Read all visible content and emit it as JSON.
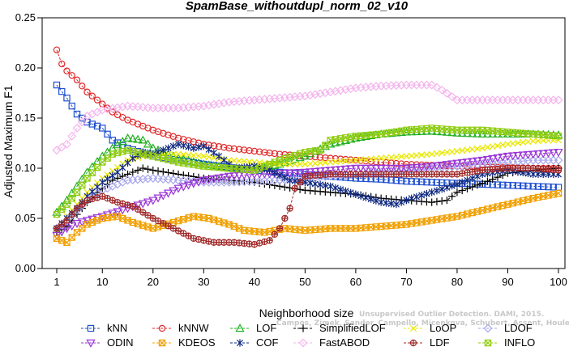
{
  "chart_data": {
    "type": "line",
    "title": "SpamBase_withoutdupl_norm_02_v10",
    "xlabel": "Neighborhood size",
    "ylabel": "Adjusted Maximum F1",
    "xlim": [
      0,
      100
    ],
    "ylim": [
      0,
      0.25
    ],
    "xticks": [
      "1",
      "10",
      "20",
      "30",
      "40",
      "50",
      "60",
      "70",
      "80",
      "90",
      "100"
    ],
    "yticks": [
      "0.00",
      "0.05",
      "0.10",
      "0.15",
      "0.20",
      "0.25"
    ],
    "watermark": {
      "line1": "Unsupervised Outlier Detection. DAMI, 2015.",
      "line2": "Campos, Zimek, Sander, Campello, Micenkova, Schubert, Assent, Houle"
    },
    "legend_position": "bottom",
    "series": [
      {
        "name": "kNN",
        "color": "#1f4fd0",
        "marker": "square",
        "points": [
          [
            1,
            0.183
          ],
          [
            3,
            0.17
          ],
          [
            5,
            0.154
          ],
          [
            7,
            0.146
          ],
          [
            10,
            0.14
          ],
          [
            12,
            0.128
          ],
          [
            15,
            0.12
          ],
          [
            20,
            0.112
          ],
          [
            25,
            0.108
          ],
          [
            30,
            0.104
          ],
          [
            35,
            0.101
          ],
          [
            40,
            0.098
          ],
          [
            45,
            0.096
          ],
          [
            50,
            0.094
          ],
          [
            55,
            0.092
          ],
          [
            60,
            0.09
          ],
          [
            65,
            0.089
          ],
          [
            70,
            0.087
          ],
          [
            75,
            0.086
          ],
          [
            80,
            0.085
          ],
          [
            85,
            0.084
          ],
          [
            90,
            0.083
          ],
          [
            95,
            0.082
          ],
          [
            100,
            0.081
          ]
        ]
      },
      {
        "name": "kNNW",
        "color": "#e02a2a",
        "marker": "circle",
        "points": [
          [
            1,
            0.218
          ],
          [
            2,
            0.204
          ],
          [
            3,
            0.197
          ],
          [
            5,
            0.188
          ],
          [
            7,
            0.176
          ],
          [
            10,
            0.164
          ],
          [
            12,
            0.156
          ],
          [
            15,
            0.148
          ],
          [
            20,
            0.138
          ],
          [
            25,
            0.13
          ],
          [
            30,
            0.124
          ],
          [
            35,
            0.12
          ],
          [
            40,
            0.117
          ],
          [
            45,
            0.114
          ],
          [
            50,
            0.112
          ],
          [
            55,
            0.11
          ],
          [
            60,
            0.108
          ],
          [
            65,
            0.106
          ],
          [
            70,
            0.104
          ],
          [
            75,
            0.103
          ],
          [
            80,
            0.102
          ],
          [
            85,
            0.101
          ],
          [
            90,
            0.101
          ],
          [
            95,
            0.1
          ],
          [
            100,
            0.1
          ]
        ]
      },
      {
        "name": "LOF",
        "color": "#22b022",
        "marker": "triangle-up",
        "points": [
          [
            1,
            0.056
          ],
          [
            3,
            0.068
          ],
          [
            5,
            0.082
          ],
          [
            7,
            0.096
          ],
          [
            10,
            0.112
          ],
          [
            12,
            0.12
          ],
          [
            15,
            0.13
          ],
          [
            18,
            0.128
          ],
          [
            20,
            0.12
          ],
          [
            25,
            0.11
          ],
          [
            30,
            0.104
          ],
          [
            35,
            0.1
          ],
          [
            40,
            0.098
          ],
          [
            45,
            0.104
          ],
          [
            50,
            0.112
          ],
          [
            55,
            0.124
          ],
          [
            60,
            0.13
          ],
          [
            65,
            0.134
          ],
          [
            70,
            0.136
          ],
          [
            75,
            0.137
          ],
          [
            80,
            0.135
          ],
          [
            85,
            0.134
          ],
          [
            90,
            0.134
          ],
          [
            95,
            0.134
          ],
          [
            100,
            0.133
          ]
        ]
      },
      {
        "name": "SimplifiedLOF",
        "color": "#000000",
        "marker": "plus",
        "points": [
          [
            1,
            0.036
          ],
          [
            3,
            0.042
          ],
          [
            5,
            0.054
          ],
          [
            7,
            0.066
          ],
          [
            10,
            0.08
          ],
          [
            12,
            0.088
          ],
          [
            15,
            0.094
          ],
          [
            18,
            0.1
          ],
          [
            20,
            0.098
          ],
          [
            25,
            0.094
          ],
          [
            30,
            0.09
          ],
          [
            35,
            0.088
          ],
          [
            40,
            0.086
          ],
          [
            45,
            0.082
          ],
          [
            50,
            0.078
          ],
          [
            55,
            0.076
          ],
          [
            60,
            0.074
          ],
          [
            65,
            0.07
          ],
          [
            70,
            0.068
          ],
          [
            75,
            0.066
          ],
          [
            78,
            0.068
          ],
          [
            80,
            0.076
          ],
          [
            85,
            0.085
          ],
          [
            90,
            0.095
          ],
          [
            95,
            0.098
          ],
          [
            100,
            0.1
          ]
        ]
      },
      {
        "name": "LoOP",
        "color": "#e8e800",
        "marker": "cross",
        "points": [
          [
            1,
            0.038
          ],
          [
            3,
            0.052
          ],
          [
            5,
            0.064
          ],
          [
            7,
            0.076
          ],
          [
            10,
            0.09
          ],
          [
            15,
            0.108
          ],
          [
            20,
            0.114
          ],
          [
            25,
            0.114
          ],
          [
            30,
            0.112
          ],
          [
            35,
            0.108
          ],
          [
            40,
            0.106
          ],
          [
            45,
            0.104
          ],
          [
            50,
            0.104
          ],
          [
            55,
            0.106
          ],
          [
            60,
            0.108
          ],
          [
            65,
            0.11
          ],
          [
            70,
            0.112
          ],
          [
            75,
            0.114
          ],
          [
            80,
            0.117
          ],
          [
            85,
            0.12
          ],
          [
            90,
            0.124
          ],
          [
            95,
            0.127
          ],
          [
            100,
            0.128
          ]
        ]
      },
      {
        "name": "LDOF",
        "color": "#a8a8ee",
        "marker": "diamond",
        "points": [
          [
            1,
            0.04
          ],
          [
            3,
            0.048
          ],
          [
            5,
            0.058
          ],
          [
            7,
            0.068
          ],
          [
            10,
            0.078
          ],
          [
            15,
            0.088
          ],
          [
            20,
            0.09
          ],
          [
            25,
            0.088
          ],
          [
            30,
            0.086
          ],
          [
            35,
            0.086
          ],
          [
            40,
            0.087
          ],
          [
            45,
            0.088
          ],
          [
            50,
            0.09
          ],
          [
            55,
            0.092
          ],
          [
            60,
            0.094
          ],
          [
            65,
            0.096
          ],
          [
            70,
            0.098
          ],
          [
            75,
            0.1
          ],
          [
            80,
            0.102
          ],
          [
            85,
            0.104
          ],
          [
            90,
            0.106
          ],
          [
            95,
            0.108
          ],
          [
            100,
            0.108
          ]
        ]
      },
      {
        "name": "ODIN",
        "color": "#9a36d6",
        "marker": "triangle-down",
        "points": [
          [
            1,
            0.033
          ],
          [
            3,
            0.04
          ],
          [
            5,
            0.045
          ],
          [
            7,
            0.048
          ],
          [
            10,
            0.052
          ],
          [
            15,
            0.06
          ],
          [
            20,
            0.068
          ],
          [
            25,
            0.08
          ],
          [
            30,
            0.088
          ],
          [
            35,
            0.092
          ],
          [
            40,
            0.094
          ],
          [
            45,
            0.095
          ],
          [
            50,
            0.096
          ],
          [
            55,
            0.098
          ],
          [
            60,
            0.1
          ],
          [
            65,
            0.1
          ],
          [
            70,
            0.1
          ],
          [
            75,
            0.102
          ],
          [
            80,
            0.105
          ],
          [
            85,
            0.108
          ],
          [
            90,
            0.112
          ],
          [
            95,
            0.114
          ],
          [
            100,
            0.116
          ]
        ]
      },
      {
        "name": "KDEOS",
        "color": "#f0a000",
        "marker": "square-x",
        "points": [
          [
            1,
            0.03
          ],
          [
            3,
            0.026
          ],
          [
            5,
            0.036
          ],
          [
            7,
            0.044
          ],
          [
            10,
            0.05
          ],
          [
            13,
            0.052
          ],
          [
            16,
            0.046
          ],
          [
            20,
            0.04
          ],
          [
            24,
            0.046
          ],
          [
            28,
            0.052
          ],
          [
            31,
            0.05
          ],
          [
            35,
            0.044
          ],
          [
            38,
            0.038
          ],
          [
            42,
            0.036
          ],
          [
            46,
            0.04
          ],
          [
            50,
            0.038
          ],
          [
            55,
            0.04
          ],
          [
            60,
            0.04
          ],
          [
            65,
            0.042
          ],
          [
            70,
            0.044
          ],
          [
            75,
            0.048
          ],
          [
            80,
            0.052
          ],
          [
            85,
            0.058
          ],
          [
            90,
            0.064
          ],
          [
            95,
            0.07
          ],
          [
            100,
            0.075
          ]
        ]
      },
      {
        "name": "COF",
        "color": "#102a80",
        "marker": "asterisk",
        "points": [
          [
            1,
            0.04
          ],
          [
            3,
            0.05
          ],
          [
            5,
            0.06
          ],
          [
            7,
            0.072
          ],
          [
            10,
            0.086
          ],
          [
            13,
            0.096
          ],
          [
            16,
            0.11
          ],
          [
            18,
            0.116
          ],
          [
            20,
            0.114
          ],
          [
            23,
            0.12
          ],
          [
            25,
            0.124
          ],
          [
            28,
            0.12
          ],
          [
            30,
            0.122
          ],
          [
            33,
            0.112
          ],
          [
            36,
            0.1
          ],
          [
            40,
            0.102
          ],
          [
            43,
            0.098
          ],
          [
            47,
            0.088
          ],
          [
            50,
            0.086
          ],
          [
            55,
            0.082
          ],
          [
            60,
            0.074
          ],
          [
            65,
            0.066
          ],
          [
            68,
            0.064
          ],
          [
            71,
            0.07
          ],
          [
            75,
            0.076
          ],
          [
            80,
            0.084
          ],
          [
            85,
            0.094
          ],
          [
            90,
            0.098
          ],
          [
            95,
            0.094
          ],
          [
            100,
            0.094
          ]
        ]
      },
      {
        "name": "FastABOD",
        "color": "#f4b4ec",
        "marker": "diamond",
        "points": [
          [
            1,
            0.118
          ],
          [
            3,
            0.124
          ],
          [
            5,
            0.14
          ],
          [
            7,
            0.152
          ],
          [
            10,
            0.158
          ],
          [
            15,
            0.162
          ],
          [
            20,
            0.16
          ],
          [
            25,
            0.16
          ],
          [
            30,
            0.162
          ],
          [
            35,
            0.166
          ],
          [
            40,
            0.168
          ],
          [
            45,
            0.17
          ],
          [
            50,
            0.172
          ],
          [
            55,
            0.176
          ],
          [
            60,
            0.18
          ],
          [
            65,
            0.182
          ],
          [
            70,
            0.183
          ],
          [
            75,
            0.183
          ],
          [
            77,
            0.178
          ],
          [
            80,
            0.168
          ],
          [
            85,
            0.168
          ],
          [
            90,
            0.168
          ],
          [
            95,
            0.168
          ],
          [
            100,
            0.168
          ]
        ]
      },
      {
        "name": "LDF",
        "color": "#a02828",
        "marker": "circle-plus",
        "points": [
          [
            1,
            0.04
          ],
          [
            3,
            0.048
          ],
          [
            5,
            0.06
          ],
          [
            7,
            0.068
          ],
          [
            10,
            0.072
          ],
          [
            13,
            0.066
          ],
          [
            16,
            0.062
          ],
          [
            20,
            0.05
          ],
          [
            24,
            0.04
          ],
          [
            28,
            0.03
          ],
          [
            32,
            0.026
          ],
          [
            36,
            0.026
          ],
          [
            40,
            0.024
          ],
          [
            43,
            0.028
          ],
          [
            45,
            0.04
          ],
          [
            47,
            0.06
          ],
          [
            48,
            0.08
          ],
          [
            50,
            0.092
          ],
          [
            55,
            0.094
          ],
          [
            60,
            0.094
          ],
          [
            65,
            0.094
          ],
          [
            70,
            0.094
          ],
          [
            75,
            0.094
          ],
          [
            80,
            0.094
          ],
          [
            85,
            0.098
          ],
          [
            90,
            0.1
          ],
          [
            95,
            0.1
          ],
          [
            100,
            0.098
          ]
        ]
      },
      {
        "name": "INFLO",
        "color": "#90cc10",
        "marker": "square-x",
        "points": [
          [
            1,
            0.054
          ],
          [
            3,
            0.064
          ],
          [
            5,
            0.076
          ],
          [
            7,
            0.09
          ],
          [
            10,
            0.106
          ],
          [
            12,
            0.114
          ],
          [
            15,
            0.118
          ],
          [
            20,
            0.112
          ],
          [
            25,
            0.106
          ],
          [
            30,
            0.102
          ],
          [
            35,
            0.1
          ],
          [
            40,
            0.098
          ],
          [
            45,
            0.108
          ],
          [
            50,
            0.116
          ],
          [
            53,
            0.118
          ],
          [
            55,
            0.128
          ],
          [
            60,
            0.132
          ],
          [
            65,
            0.134
          ],
          [
            70,
            0.138
          ],
          [
            75,
            0.14
          ],
          [
            80,
            0.138
          ],
          [
            85,
            0.138
          ],
          [
            90,
            0.136
          ],
          [
            95,
            0.134
          ],
          [
            100,
            0.132
          ]
        ]
      }
    ]
  }
}
